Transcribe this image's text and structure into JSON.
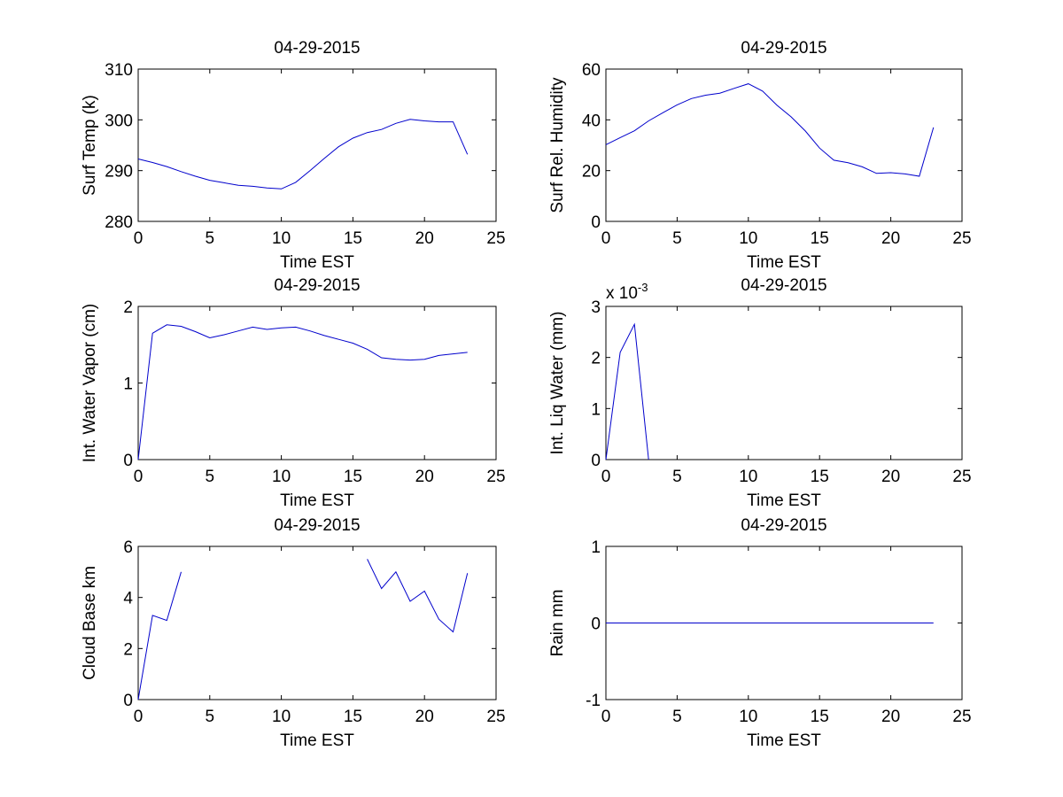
{
  "figure": {
    "background": "#ffffff",
    "line_color": "#0000cc"
  },
  "chart_data": [
    {
      "type": "line",
      "title": "04-29-2015",
      "xlabel": "Time EST",
      "ylabel": "Surf Temp (k)",
      "xlim": [
        0,
        25
      ],
      "ylim": [
        280,
        310
      ],
      "xticks": [
        0,
        5,
        10,
        15,
        20,
        25
      ],
      "yticks": [
        280,
        290,
        300,
        310
      ],
      "x": [
        0,
        1,
        2,
        3,
        4,
        5,
        6,
        7,
        8,
        9,
        10,
        11,
        12,
        13,
        14,
        15,
        16,
        17,
        18,
        19,
        20,
        21,
        22,
        23
      ],
      "series": [
        {
          "values": [
            292.3,
            291.6,
            290.8,
            289.8,
            288.9,
            288.1,
            287.6,
            287.1,
            286.9,
            286.6,
            286.4,
            287.7,
            290.0,
            292.4,
            294.7,
            296.4,
            297.5,
            298.1,
            299.3,
            300.1,
            299.8,
            299.6,
            299.6,
            293.2
          ]
        }
      ]
    },
    {
      "type": "line",
      "title": "04-29-2015",
      "xlabel": "Time EST",
      "ylabel": "Surf Rel. Humidity",
      "xlim": [
        0,
        25
      ],
      "ylim": [
        0,
        60
      ],
      "xticks": [
        0,
        5,
        10,
        15,
        20,
        25
      ],
      "yticks": [
        0,
        20,
        40,
        60
      ],
      "x": [
        0,
        1,
        2,
        3,
        4,
        5,
        6,
        7,
        8,
        9,
        10,
        11,
        12,
        13,
        14,
        15,
        16,
        17,
        18,
        19,
        20,
        21,
        22,
        23
      ],
      "series": [
        {
          "values": [
            30.2,
            33.0,
            35.7,
            39.6,
            42.8,
            45.9,
            48.4,
            49.7,
            50.5,
            52.4,
            54.2,
            51.3,
            45.8,
            41.2,
            35.6,
            28.9,
            24.1,
            23.1,
            21.5,
            18.9,
            19.2,
            18.7,
            17.8,
            37.0
          ]
        }
      ]
    },
    {
      "type": "line",
      "title": "04-29-2015",
      "xlabel": "Time EST",
      "ylabel": "Int. Water Vapor (cm)",
      "xlim": [
        0,
        25
      ],
      "ylim": [
        0,
        2
      ],
      "xticks": [
        0,
        5,
        10,
        15,
        20,
        25
      ],
      "yticks": [
        0,
        1,
        2
      ],
      "x": [
        0,
        1,
        2,
        3,
        4,
        5,
        6,
        7,
        8,
        9,
        10,
        11,
        12,
        13,
        14,
        15,
        16,
        17,
        18,
        19,
        20,
        21,
        22,
        23
      ],
      "series": [
        {
          "values": [
            0.0,
            1.65,
            1.76,
            1.74,
            1.67,
            1.59,
            1.63,
            1.68,
            1.73,
            1.7,
            1.72,
            1.73,
            1.68,
            1.62,
            1.57,
            1.52,
            1.44,
            1.33,
            1.31,
            1.3,
            1.31,
            1.36,
            1.38,
            1.4
          ]
        }
      ]
    },
    {
      "type": "line",
      "title": "04-29-2015",
      "xlabel": "Time EST",
      "ylabel": "Int. Liq Water (mm)",
      "xlim": [
        0,
        25
      ],
      "ylim": [
        0,
        3
      ],
      "xticks": [
        0,
        5,
        10,
        15,
        20,
        25
      ],
      "yticks": [
        0,
        1,
        2,
        3
      ],
      "y_scale_label": "x 10",
      "y_scale_exponent": "-3",
      "x": [
        0,
        1,
        2,
        3
      ],
      "series": [
        {
          "values": [
            0.0,
            2.1,
            2.65,
            0.0
          ]
        }
      ]
    },
    {
      "type": "line",
      "title": "04-29-2015",
      "xlabel": "Time EST",
      "ylabel": "Cloud Base km",
      "xlim": [
        0,
        25
      ],
      "ylim": [
        0,
        6
      ],
      "xticks": [
        0,
        5,
        10,
        15,
        20,
        25
      ],
      "yticks": [
        0,
        2,
        4,
        6
      ],
      "x": [
        0,
        1,
        2,
        3,
        4,
        5,
        6,
        7,
        8,
        9,
        10,
        11,
        12,
        13,
        14,
        15,
        16,
        17,
        18,
        19,
        20,
        21,
        22,
        23
      ],
      "series": [
        {
          "values": [
            0.0,
            3.3,
            3.1,
            5.0,
            null,
            null,
            null,
            null,
            null,
            null,
            null,
            null,
            null,
            null,
            null,
            null,
            5.5,
            4.35,
            5.0,
            3.85,
            4.25,
            3.15,
            2.65,
            4.95
          ]
        }
      ]
    },
    {
      "type": "line",
      "title": "04-29-2015",
      "xlabel": "Time EST",
      "ylabel": "Rain mm",
      "xlim": [
        0,
        25
      ],
      "ylim": [
        -1,
        1
      ],
      "xticks": [
        0,
        5,
        10,
        15,
        20,
        25
      ],
      "yticks": [
        -1,
        0,
        1
      ],
      "x": [
        0,
        1,
        2,
        3,
        4,
        5,
        6,
        7,
        8,
        9,
        10,
        11,
        12,
        13,
        14,
        15,
        16,
        17,
        18,
        19,
        20,
        21,
        22,
        23
      ],
      "series": [
        {
          "values": [
            0,
            0,
            0,
            0,
            0,
            0,
            0,
            0,
            0,
            0,
            0,
            0,
            0,
            0,
            0,
            0,
            0,
            0,
            0,
            0,
            0,
            0,
            0,
            0
          ]
        }
      ]
    }
  ]
}
